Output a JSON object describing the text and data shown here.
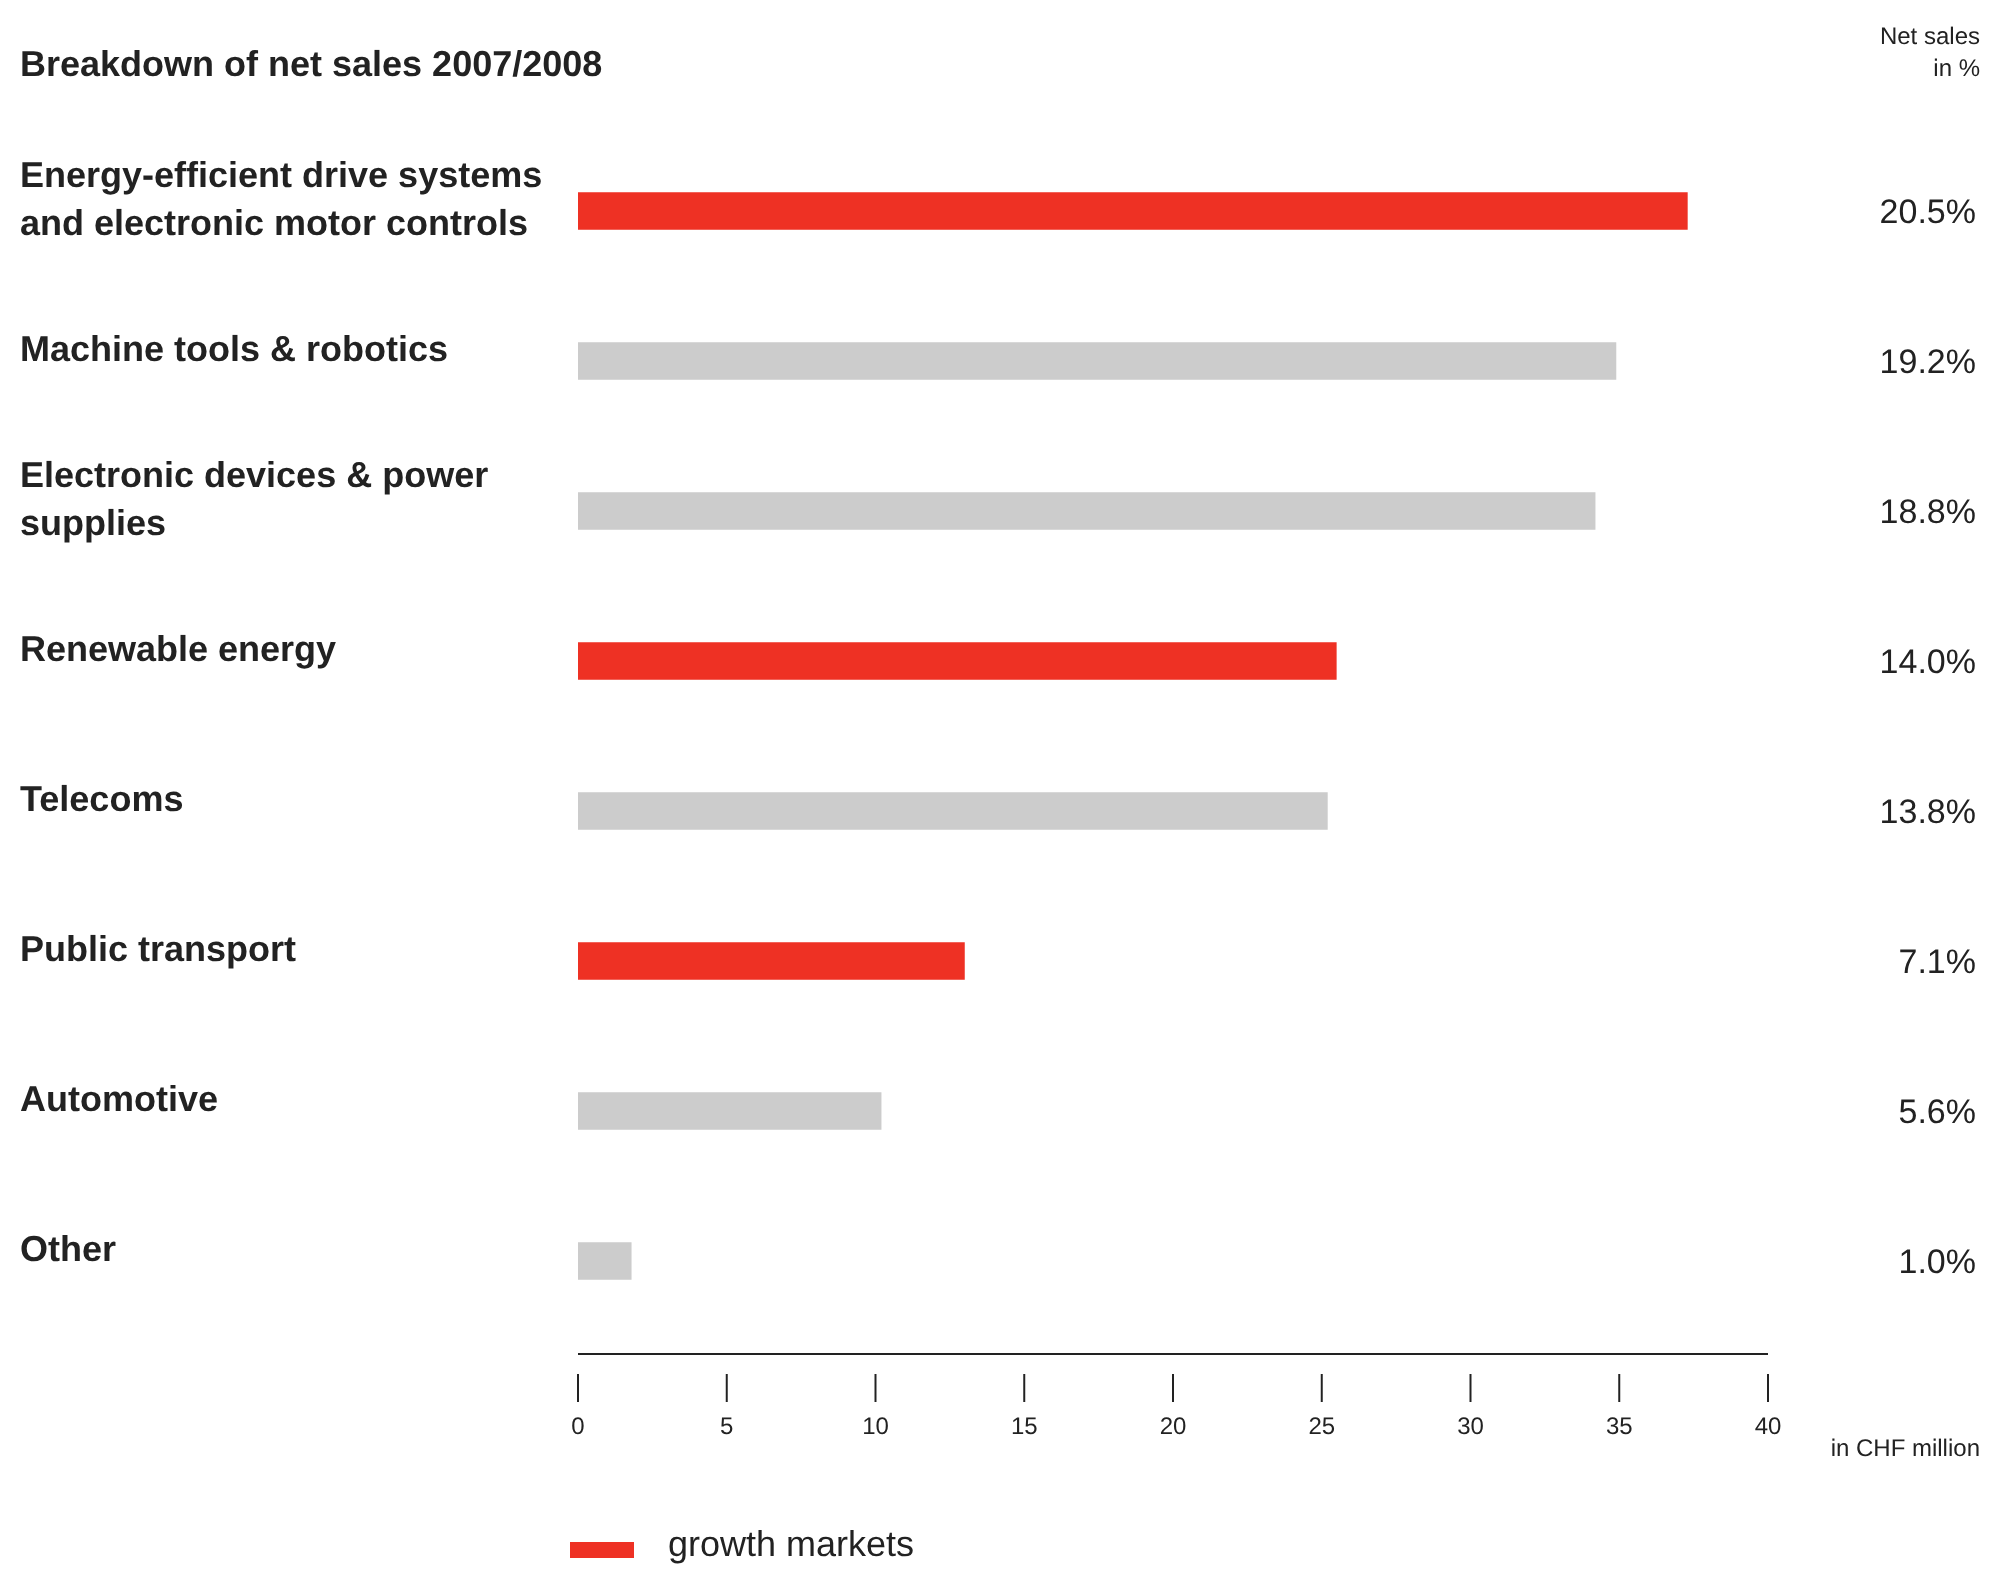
{
  "chart_data": {
    "type": "bar",
    "orientation": "horizontal",
    "title": "Breakdown of net sales 2007/2008",
    "xlabel": "in CHF million",
    "categories": [
      "Energy-efficient drive systems and electronic motor controls",
      "Machine tools & robotics",
      "Electronic devices & power supplies",
      "Renewable energy",
      "Telecoms",
      "Public transport",
      "Automotive",
      "Other"
    ],
    "series": [
      {
        "name": "growth markets",
        "color": "#ee3124",
        "values": [
          37.3,
          null,
          null,
          25.5,
          null,
          13.0,
          null,
          null
        ]
      },
      {
        "color": "#cccccc",
        "values": [
          null,
          34.9,
          34.2,
          null,
          25.2,
          null,
          10.2,
          1.8
        ]
      }
    ],
    "xlim": [
      0,
      40
    ],
    "xticks": [
      0,
      5,
      10,
      15,
      20,
      25,
      30,
      35,
      40
    ],
    "legend": "bottom",
    "annotations": [
      "Net sales\nin %",
      "20.5%",
      "19.2%",
      "18.8%",
      "14.0%",
      "13.8%",
      "7.1%",
      "5.6%",
      "1.0%"
    ]
  }
}
